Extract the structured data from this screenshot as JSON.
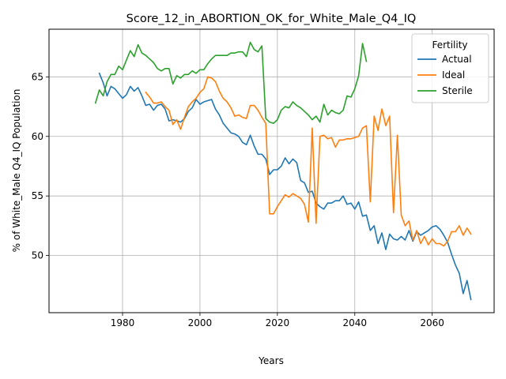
{
  "chart_data": {
    "type": "line",
    "title": "Score_12_in_ABORTION_OK_for_White_Male_Q4_IQ",
    "xlabel": "Years",
    "ylabel": "% of White_Male Q4_IQ Population",
    "xlim": [
      1961,
      2076
    ],
    "ylim": [
      45.2,
      69.0
    ],
    "xticks": [
      1980,
      2000,
      2020,
      2040,
      2060
    ],
    "yticks": [
      50,
      55,
      60,
      65
    ],
    "grid": true,
    "legend": {
      "title": "Fertility",
      "placement": "top-right"
    },
    "series": [
      {
        "name": "Actual",
        "color": "#1f77b4",
        "x": [
          1974,
          1975,
          1976,
          1977,
          1978,
          1979,
          1980,
          1981,
          1982,
          1983,
          1984,
          1985,
          1986,
          1987,
          1988,
          1989,
          1990,
          1991,
          1992,
          1993,
          1994,
          1995,
          1996,
          1997,
          1998,
          1999,
          2000,
          2001,
          2002,
          2003,
          2004,
          2005,
          2006,
          2007,
          2008,
          2009,
          2010,
          2011,
          2012,
          2013,
          2014,
          2015,
          2016,
          2017,
          2018,
          2019,
          2020,
          2021,
          2022,
          2023,
          2024,
          2025,
          2026,
          2027,
          2028,
          2029,
          2030,
          2031,
          2032,
          2033,
          2034,
          2035,
          2036,
          2037,
          2038,
          2039,
          2040,
          2041,
          2042,
          2043,
          2044,
          2045,
          2046,
          2047,
          2048,
          2049,
          2050,
          2051,
          2052,
          2053,
          2054,
          2055,
          2056,
          2057,
          2058,
          2059,
          2060,
          2061,
          2062,
          2063,
          2064,
          2065,
          2066,
          2067,
          2068,
          2069,
          2070
        ],
        "values": [
          65.3,
          64.5,
          63.4,
          64.2,
          64.0,
          63.6,
          63.2,
          63.5,
          64.2,
          63.8,
          64.1,
          63.4,
          62.6,
          62.7,
          62.2,
          62.6,
          62.7,
          62.3,
          61.3,
          61.4,
          61.3,
          61.2,
          61.5,
          62.1,
          62.4,
          63.1,
          62.7,
          62.9,
          63.0,
          63.1,
          62.3,
          61.8,
          61.1,
          60.7,
          60.3,
          60.2,
          60.0,
          59.5,
          59.3,
          60.1,
          59.2,
          58.5,
          58.5,
          58.1,
          56.8,
          57.2,
          57.2,
          57.5,
          58.2,
          57.7,
          58.1,
          57.8,
          56.3,
          56.1,
          55.3,
          55.4,
          54.4,
          54.1,
          53.9,
          54.4,
          54.4,
          54.6,
          54.6,
          55.0,
          54.3,
          54.4,
          53.9,
          54.5,
          53.3,
          53.4,
          52.1,
          52.5,
          51.0,
          51.9,
          50.5,
          51.8,
          51.4,
          51.3,
          51.6,
          51.3,
          52.1,
          51.2,
          52.0,
          51.7,
          51.9,
          52.1,
          52.4,
          52.5,
          52.2,
          51.7,
          51.1,
          50.1,
          49.2,
          48.5,
          46.8,
          47.9,
          46.3
        ]
      },
      {
        "name": "Ideal",
        "color": "#ff7f0e",
        "x": [
          1986,
          1987,
          1988,
          1989,
          1990,
          1991,
          1992,
          1993,
          1994,
          1995,
          1996,
          1997,
          1998,
          1999,
          2000,
          2001,
          2002,
          2003,
          2004,
          2005,
          2006,
          2007,
          2008,
          2009,
          2010,
          2011,
          2012,
          2013,
          2014,
          2015,
          2016,
          2017,
          2018,
          2019,
          2020,
          2021,
          2022,
          2023,
          2024,
          2025,
          2026,
          2027,
          2028,
          2029,
          2030,
          2031,
          2032,
          2033,
          2034,
          2035,
          2036,
          2037,
          2038,
          2039,
          2040,
          2041,
          2042,
          2043,
          2044,
          2045,
          2046,
          2047,
          2048,
          2049,
          2050,
          2051,
          2052,
          2053,
          2054,
          2055,
          2056,
          2057,
          2058,
          2059,
          2060,
          2061,
          2062,
          2063,
          2064,
          2065,
          2066,
          2067,
          2068,
          2069,
          2070
        ],
        "values": [
          63.7,
          63.3,
          62.8,
          62.8,
          62.9,
          62.5,
          62.2,
          61.0,
          61.4,
          60.6,
          61.6,
          62.5,
          62.9,
          63.2,
          63.7,
          64.0,
          65.0,
          64.9,
          64.6,
          63.8,
          63.2,
          62.9,
          62.4,
          61.7,
          61.8,
          61.6,
          61.5,
          62.6,
          62.6,
          62.2,
          61.6,
          61.1,
          53.5,
          53.5,
          54.1,
          54.6,
          55.1,
          54.9,
          55.2,
          55.0,
          54.8,
          54.3,
          52.8,
          60.7,
          52.7,
          60.0,
          60.1,
          59.8,
          59.9,
          59.1,
          59.7,
          59.7,
          59.8,
          59.8,
          59.9,
          60.0,
          60.7,
          60.9,
          54.5,
          61.7,
          60.5,
          62.3,
          60.9,
          61.7,
          53.6,
          60.1,
          53.4,
          52.5,
          52.9,
          51.3,
          52.1,
          51.0,
          51.6,
          50.9,
          51.4,
          51.0,
          51.0,
          50.8,
          51.2,
          52.0,
          52.0,
          52.5,
          51.7,
          52.3,
          51.8
        ]
      },
      {
        "name": "Sterile",
        "color": "#2ca02c",
        "x": [
          1973,
          1974,
          1975,
          1976,
          1977,
          1978,
          1979,
          1980,
          1981,
          1982,
          1983,
          1984,
          1985,
          1986,
          1987,
          1988,
          1989,
          1990,
          1991,
          1992,
          1993,
          1994,
          1995,
          1996,
          1997,
          1998,
          1999,
          2000,
          2001,
          2002,
          2003,
          2004,
          2005,
          2006,
          2007,
          2008,
          2009,
          2010,
          2011,
          2012,
          2013,
          2014,
          2015,
          2016,
          2017,
          2018,
          2019,
          2020,
          2021,
          2022,
          2023,
          2024,
          2025,
          2026,
          2027,
          2028,
          2029,
          2030,
          2031,
          2032,
          2033,
          2034,
          2035,
          2036,
          2037,
          2038,
          2039,
          2040,
          2041,
          2042,
          2043
        ],
        "values": [
          62.8,
          63.9,
          63.4,
          64.6,
          65.2,
          65.2,
          65.9,
          65.6,
          66.4,
          67.2,
          66.7,
          67.7,
          67.0,
          66.8,
          66.5,
          66.2,
          65.7,
          65.5,
          65.7,
          65.7,
          64.4,
          65.1,
          64.9,
          65.2,
          65.2,
          65.5,
          65.3,
          65.6,
          65.6,
          66.1,
          66.5,
          66.8,
          66.8,
          66.8,
          66.8,
          67.0,
          67.0,
          67.1,
          67.1,
          66.7,
          67.9,
          67.3,
          67.1,
          67.6,
          61.5,
          61.2,
          61.1,
          61.4,
          62.2,
          62.5,
          62.4,
          62.9,
          62.6,
          62.4,
          62.1,
          61.8,
          61.4,
          61.7,
          61.2,
          62.7,
          61.8,
          62.2,
          62.0,
          61.9,
          62.2,
          63.4,
          63.3,
          64.0,
          65.1,
          67.8,
          66.3
        ]
      }
    ]
  }
}
